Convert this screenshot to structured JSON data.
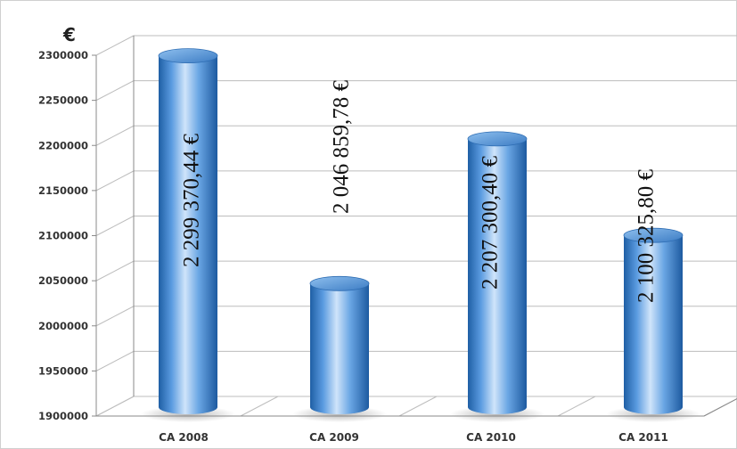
{
  "chart_data": {
    "type": "bar",
    "categories": [
      "CA 2008",
      "CA 2009",
      "CA 2010",
      "CA 2011"
    ],
    "values": [
      2299370.44,
      2046859.78,
      2207300.4,
      2100325.8
    ],
    "data_labels": [
      "2 299 370,44 €",
      "2 046 859,78 €",
      "2 207 300,40 €",
      "2 100 325,80 €"
    ],
    "y_ticks": [
      "1900000",
      "1950000",
      "2000000",
      "2050000",
      "2100000",
      "2150000",
      "2200000",
      "2250000",
      "2300000"
    ],
    "ylim": [
      1900000,
      2300000
    ],
    "unit_label": "€",
    "grid": true,
    "legend": "none",
    "style": "3d-cylinder",
    "bar_color": "#4a86c8"
  }
}
